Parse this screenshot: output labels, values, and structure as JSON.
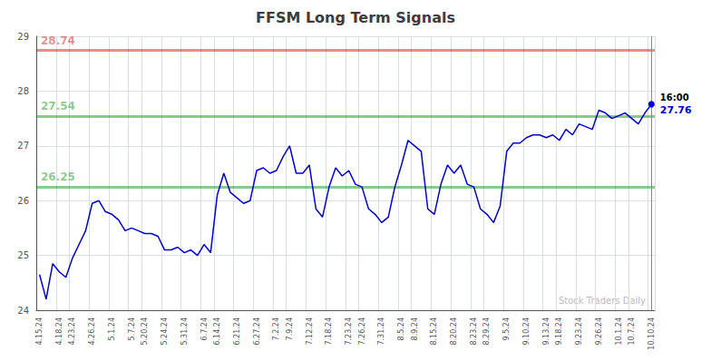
{
  "chart_data": {
    "type": "line",
    "title": "FFSM Long Term Signals",
    "categories": [
      "4.15.24",
      null,
      null,
      "4.18.24",
      null,
      "4.23.24",
      null,
      null,
      "4.26.24",
      null,
      null,
      "5.1.24",
      null,
      null,
      "5.7.24",
      null,
      "5.20.24",
      null,
      null,
      "5.24.24",
      null,
      null,
      "5.31.24",
      null,
      null,
      "6.7.24",
      null,
      "6.14.24",
      null,
      null,
      "6.21.24",
      null,
      null,
      "6.27.24",
      null,
      null,
      "7.2.24",
      null,
      "7.9.24",
      null,
      null,
      "7.12.24",
      null,
      null,
      "7.18.24",
      null,
      null,
      "7.23.24",
      null,
      "7.26.24",
      null,
      null,
      "7.31.24",
      null,
      null,
      "8.5.24",
      null,
      "8.9.24",
      null,
      null,
      "8.15.24",
      null,
      null,
      "8.20.24",
      null,
      null,
      "8.23.24",
      null,
      "8.29.24",
      null,
      null,
      "9.5.24",
      null,
      null,
      "9.10.24",
      null,
      null,
      "9.13.24",
      null,
      "9.18.24",
      null,
      null,
      "9.23.24",
      null,
      null,
      "9.26.24",
      null,
      null,
      "10.1.24",
      null,
      "10.7.24",
      null,
      null,
      "10.10.24"
    ],
    "values": [
      24.65,
      24.2,
      24.85,
      24.7,
      24.6,
      24.95,
      25.2,
      25.45,
      25.95,
      26.0,
      25.8,
      25.75,
      25.65,
      25.45,
      25.5,
      25.45,
      25.4,
      25.4,
      25.35,
      25.1,
      25.1,
      25.15,
      25.05,
      25.1,
      25.0,
      25.2,
      25.05,
      26.1,
      26.5,
      26.15,
      26.05,
      25.95,
      26.0,
      26.55,
      26.6,
      26.5,
      26.55,
      26.8,
      27.0,
      26.5,
      26.5,
      26.65,
      25.85,
      25.7,
      26.25,
      26.6,
      26.45,
      26.55,
      26.3,
      26.25,
      25.85,
      25.75,
      25.6,
      25.7,
      26.25,
      26.65,
      27.1,
      27.0,
      26.9,
      25.85,
      25.75,
      26.3,
      26.65,
      26.5,
      26.65,
      26.3,
      26.25,
      25.85,
      25.75,
      25.6,
      25.9,
      26.9,
      27.05,
      27.05,
      27.15,
      27.2,
      27.2,
      27.15,
      27.2,
      27.1,
      27.3,
      27.2,
      27.4,
      27.35,
      27.3,
      27.65,
      27.6,
      27.5,
      27.55,
      27.6,
      27.5,
      27.4,
      27.6,
      27.76
    ],
    "color": "#0000cc",
    "ylim": [
      24,
      29
    ],
    "yticks": [
      24,
      25,
      26,
      27,
      28,
      29
    ],
    "grid": true,
    "reference_lines": [
      {
        "y": 28.74,
        "label": "28.74",
        "color": "#cc0000"
      },
      {
        "y": 27.54,
        "label": "27.54",
        "color": "#008800"
      },
      {
        "y": 26.25,
        "label": "26.25",
        "color": "#008800"
      }
    ],
    "end_label": "16:00",
    "end_value": "27.76",
    "watermark": "Stock Traders Daily"
  }
}
